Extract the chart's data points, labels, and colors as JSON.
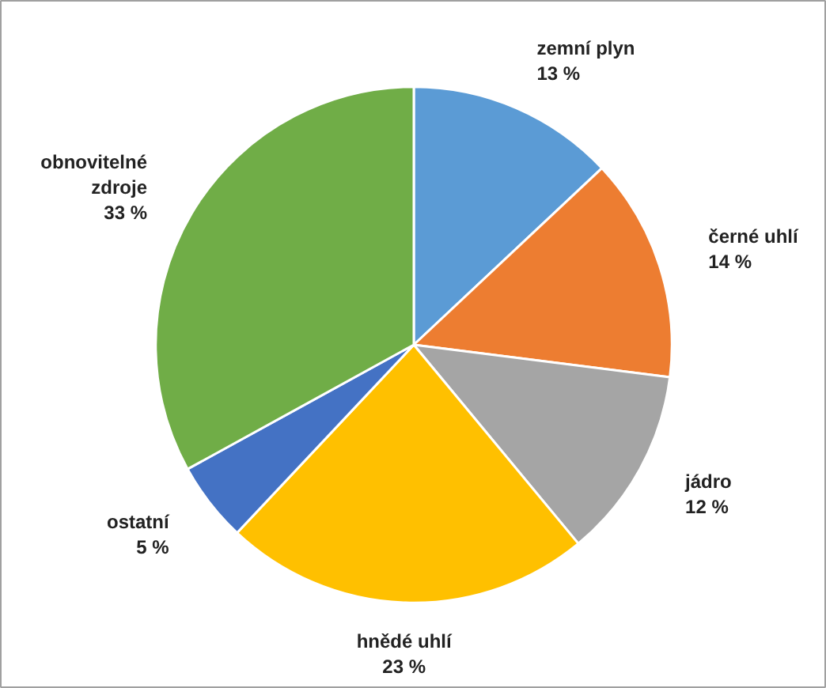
{
  "chart_data": {
    "type": "pie",
    "categories": [
      "zemní plyn",
      "černé uhlí",
      "jádro",
      "hnědé uhlí",
      "ostatní",
      "obnovitelné zdroje"
    ],
    "values": [
      13,
      14,
      12,
      23,
      5,
      33
    ],
    "value_labels": [
      "13 %",
      "14 %",
      "12 %",
      "23 %",
      "5 %",
      "33 %"
    ],
    "colors": [
      "#5b9bd5",
      "#ed7d31",
      "#a5a5a5",
      "#ffc000",
      "#4472c4",
      "#70ad47"
    ]
  }
}
